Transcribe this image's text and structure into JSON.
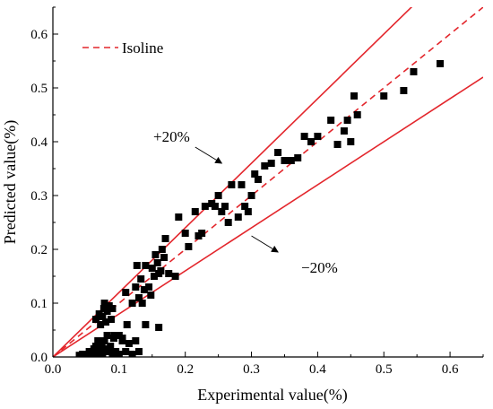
{
  "chart_data": {
    "type": "scatter",
    "title": "",
    "xlabel": "Experimental value(%)",
    "ylabel": "Predicted value(%)",
    "xlim": [
      0.0,
      0.65
    ],
    "ylim": [
      0.0,
      0.65
    ],
    "xticks": [
      "0.0",
      "0.1",
      "0.2",
      "0.3",
      "0.4",
      "0.5",
      "0.6"
    ],
    "yticks": [
      "0.0",
      "0.1",
      "0.2",
      "0.3",
      "0.4",
      "0.5",
      "0.6"
    ],
    "grid": false,
    "legend": {
      "position": "top-left",
      "label": "Isoline"
    },
    "colors": {
      "lines": "#e3262c",
      "points": "#000000"
    },
    "lines": [
      {
        "label": "Isoline",
        "slope": 1.0,
        "style": "dashed"
      },
      {
        "label": "+20%",
        "slope": 1.2,
        "style": "solid"
      },
      {
        "label": "−20%",
        "slope": 0.8,
        "style": "solid"
      }
    ],
    "annotations": [
      {
        "text": "+20%",
        "arrow_from": [
          0.215,
          0.39
        ],
        "arrow_to": [
          0.255,
          0.36
        ]
      },
      {
        "text": "−20%",
        "arrow_from": [
          0.3,
          0.225
        ],
        "arrow_to": [
          0.34,
          0.195
        ]
      }
    ],
    "series": [
      {
        "marker": "square",
        "points": [
          [
            0.04,
            0.003
          ],
          [
            0.045,
            0.005
          ],
          [
            0.05,
            0.003
          ],
          [
            0.055,
            0.01
          ],
          [
            0.06,
            0.005
          ],
          [
            0.062,
            0.015
          ],
          [
            0.065,
            0.02
          ],
          [
            0.066,
            0.005
          ],
          [
            0.068,
            0.03
          ],
          [
            0.07,
            0.01
          ],
          [
            0.072,
            0.025
          ],
          [
            0.074,
            0.02
          ],
          [
            0.075,
            0.005
          ],
          [
            0.078,
            0.03
          ],
          [
            0.08,
            0.015
          ],
          [
            0.082,
            0.04
          ],
          [
            0.085,
            0.01
          ],
          [
            0.087,
            0.02
          ],
          [
            0.09,
            0.003
          ],
          [
            0.092,
            0.035
          ],
          [
            0.095,
            0.01
          ],
          [
            0.1,
            0.005
          ],
          [
            0.105,
            0.03
          ],
          [
            0.11,
            0.01
          ],
          [
            0.115,
            0.025
          ],
          [
            0.12,
            0.005
          ],
          [
            0.125,
            0.03
          ],
          [
            0.13,
            0.01
          ],
          [
            0.14,
            0.06
          ],
          [
            0.16,
            0.055
          ],
          [
            0.065,
            0.07
          ],
          [
            0.07,
            0.08
          ],
          [
            0.072,
            0.06
          ],
          [
            0.075,
            0.075
          ],
          [
            0.077,
            0.09
          ],
          [
            0.078,
            0.1
          ],
          [
            0.08,
            0.065
          ],
          [
            0.082,
            0.085
          ],
          [
            0.085,
            0.095
          ],
          [
            0.088,
            0.07
          ],
          [
            0.09,
            0.09
          ],
          [
            0.093,
            0.04
          ],
          [
            0.1,
            0.04
          ],
          [
            0.105,
            0.035
          ],
          [
            0.11,
            0.12
          ],
          [
            0.112,
            0.06
          ],
          [
            0.12,
            0.1
          ],
          [
            0.125,
            0.13
          ],
          [
            0.127,
            0.17
          ],
          [
            0.13,
            0.11
          ],
          [
            0.133,
            0.145
          ],
          [
            0.135,
            0.1
          ],
          [
            0.138,
            0.125
          ],
          [
            0.14,
            0.17
          ],
          [
            0.145,
            0.13
          ],
          [
            0.148,
            0.115
          ],
          [
            0.15,
            0.165
          ],
          [
            0.153,
            0.15
          ],
          [
            0.155,
            0.19
          ],
          [
            0.158,
            0.175
          ],
          [
            0.16,
            0.155
          ],
          [
            0.163,
            0.16
          ],
          [
            0.165,
            0.2
          ],
          [
            0.168,
            0.185
          ],
          [
            0.17,
            0.22
          ],
          [
            0.175,
            0.155
          ],
          [
            0.185,
            0.15
          ],
          [
            0.19,
            0.26
          ],
          [
            0.2,
            0.23
          ],
          [
            0.205,
            0.205
          ],
          [
            0.215,
            0.27
          ],
          [
            0.22,
            0.225
          ],
          [
            0.225,
            0.23
          ],
          [
            0.23,
            0.28
          ],
          [
            0.24,
            0.285
          ],
          [
            0.245,
            0.28
          ],
          [
            0.25,
            0.3
          ],
          [
            0.255,
            0.27
          ],
          [
            0.26,
            0.28
          ],
          [
            0.265,
            0.25
          ],
          [
            0.27,
            0.32
          ],
          [
            0.28,
            0.26
          ],
          [
            0.285,
            0.32
          ],
          [
            0.29,
            0.28
          ],
          [
            0.295,
            0.27
          ],
          [
            0.3,
            0.3
          ],
          [
            0.305,
            0.34
          ],
          [
            0.31,
            0.33
          ],
          [
            0.32,
            0.355
          ],
          [
            0.33,
            0.36
          ],
          [
            0.34,
            0.38
          ],
          [
            0.35,
            0.365
          ],
          [
            0.36,
            0.365
          ],
          [
            0.37,
            0.37
          ],
          [
            0.38,
            0.41
          ],
          [
            0.39,
            0.4
          ],
          [
            0.4,
            0.41
          ],
          [
            0.42,
            0.44
          ],
          [
            0.43,
            0.395
          ],
          [
            0.44,
            0.42
          ],
          [
            0.445,
            0.44
          ],
          [
            0.45,
            0.4
          ],
          [
            0.455,
            0.485
          ],
          [
            0.46,
            0.45
          ],
          [
            0.5,
            0.485
          ],
          [
            0.53,
            0.495
          ],
          [
            0.545,
            0.53
          ],
          [
            0.585,
            0.545
          ]
        ]
      }
    ]
  }
}
